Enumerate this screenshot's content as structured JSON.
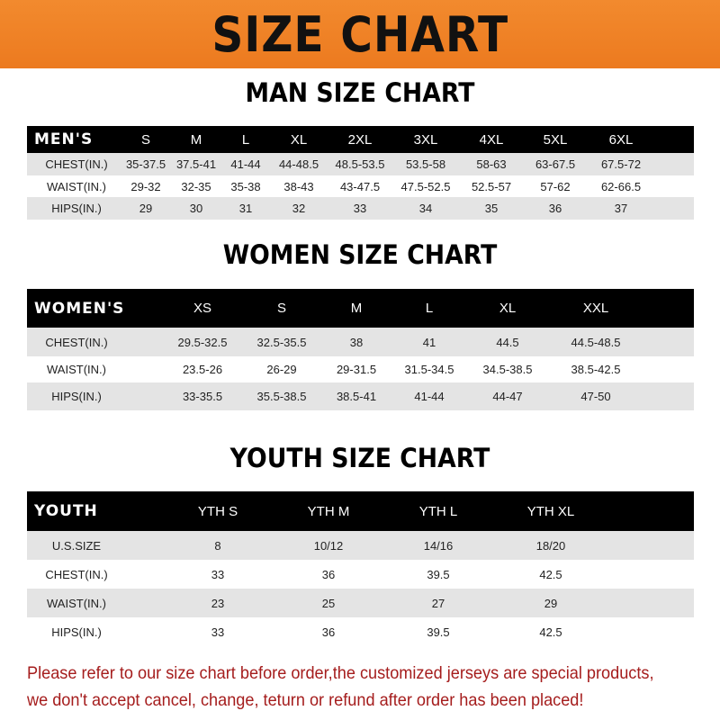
{
  "banner": {
    "title": "SIZE CHART",
    "color": "#ee7d22"
  },
  "men": {
    "title": "MAN SIZE CHART",
    "header": [
      "MEN'S",
      "S",
      "M",
      "L",
      "XL",
      "2XL",
      "3XL",
      "4XL",
      "5XL",
      "6XL"
    ],
    "rows": [
      [
        "CHEST(IN.)",
        "35-37.5",
        "37.5-41",
        "41-44",
        "44-48.5",
        "48.5-53.5",
        "53.5-58",
        "58-63",
        "63-67.5",
        "67.5-72"
      ],
      [
        "WAIST(IN.)",
        "29-32",
        "32-35",
        "35-38",
        "38-43",
        "43-47.5",
        "47.5-52.5",
        "52.5-57",
        "57-62",
        "62-66.5"
      ],
      [
        "HIPS(IN.)",
        "29",
        "30",
        "31",
        "32",
        "33",
        "34",
        "35",
        "36",
        "37"
      ]
    ]
  },
  "women": {
    "title": "WOMEN SIZE CHART",
    "header": [
      "WOMEN'S",
      "XS",
      "S",
      "M",
      "L",
      "XL",
      "XXL"
    ],
    "rows": [
      [
        "CHEST(IN.)",
        "29.5-32.5",
        "32.5-35.5",
        "38",
        "41",
        "44.5",
        "44.5-48.5"
      ],
      [
        "WAIST(IN.)",
        "23.5-26",
        "26-29",
        "29-31.5",
        "31.5-34.5",
        "34.5-38.5",
        "38.5-42.5"
      ],
      [
        "HIPS(IN.)",
        "33-35.5",
        "35.5-38.5",
        "38.5-41",
        "41-44",
        "44-47",
        "47-50"
      ]
    ]
  },
  "youth": {
    "title": "YOUTH SIZE CHART",
    "header": [
      "YOUTH",
      "YTH S",
      "YTH M",
      "YTH L",
      "YTH XL"
    ],
    "rows": [
      [
        "U.S.SIZE",
        "8",
        "10/12",
        "14/16",
        "18/20"
      ],
      [
        "CHEST(IN.)",
        "33",
        "36",
        "39.5",
        "42.5"
      ],
      [
        "WAIST(IN.)",
        "23",
        "25",
        "27",
        "29"
      ],
      [
        "HIPS(IN.)",
        "33",
        "36",
        "39.5",
        "42.5"
      ]
    ]
  },
  "note": {
    "line1": "Please refer to our size chart before order,the customized jerseys are special products,",
    "line2": "we don't accept cancel, change, teturn or refund after order has been placed!",
    "color": "#a51d1d"
  }
}
